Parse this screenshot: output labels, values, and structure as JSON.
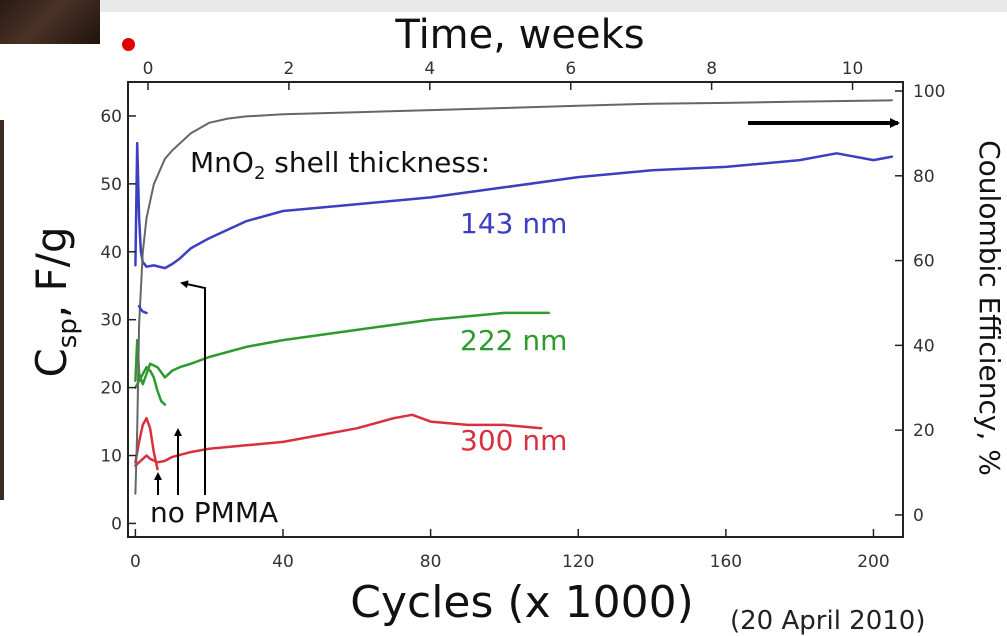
{
  "chart_data": {
    "type": "line",
    "top_axis": {
      "label": "Time, weeks",
      "range": [
        0,
        11
      ],
      "ticks": [
        "0",
        "2",
        "4",
        "6",
        "8",
        "10"
      ]
    },
    "bottom_axis": {
      "label": "Cycles (x 1000)",
      "range": [
        -2,
        208
      ],
      "ticks": [
        "0",
        "40",
        "80",
        "120",
        "160",
        "200"
      ]
    },
    "left_axis": {
      "label_main": "C",
      "label_sub": "sp",
      "label_rest": ", F/g",
      "range": [
        -2,
        65
      ],
      "ticks": [
        "0",
        "10",
        "20",
        "30",
        "40",
        "50",
        "60"
      ]
    },
    "right_axis": {
      "label": "Coulombic Efficiency, %",
      "range": [
        -3.08,
        100
      ],
      "ticks": [
        "0",
        "20",
        "40",
        "60",
        "80",
        "100"
      ]
    },
    "annotations": {
      "shell_title_main": "MnO",
      "shell_title_sub": "2",
      "shell_title_rest": " shell thickness:",
      "no_pmma": "no PMMA"
    },
    "series": [
      {
        "name": "143 nm",
        "axis": "left",
        "color": "#3b3fc0",
        "x": [
          0,
          0.5,
          1,
          1.5,
          2,
          3,
          5,
          8,
          10,
          12,
          15,
          20,
          30,
          40,
          60,
          80,
          100,
          120,
          140,
          160,
          180,
          190,
          200,
          205
        ],
        "y": [
          38,
          56,
          45,
          40,
          38.5,
          37.8,
          38,
          37.6,
          38.2,
          39,
          40.5,
          42,
          44.5,
          46,
          47,
          48,
          49.5,
          51,
          52,
          52.5,
          53.5,
          54.5,
          53.5,
          54
        ]
      },
      {
        "name": "222 nm",
        "axis": "left",
        "color": "#2e9a2e",
        "x": [
          0,
          0.5,
          1,
          2,
          3,
          4,
          6,
          8,
          10,
          12,
          15,
          20,
          30,
          40,
          60,
          80,
          100,
          112
        ],
        "y": [
          21,
          27,
          22,
          20.5,
          22,
          23.5,
          23,
          21.5,
          22.5,
          23,
          23.5,
          24.5,
          26,
          27,
          28.5,
          30,
          31,
          31
        ]
      },
      {
        "name": "222 nm (no PMMA)",
        "axis": "left",
        "color": "#2e9a2e",
        "x": [
          0,
          1,
          2,
          3,
          4,
          5,
          6,
          7,
          8
        ],
        "y": [
          20,
          21,
          22,
          23,
          22.5,
          21.5,
          19.5,
          18,
          17.5
        ]
      },
      {
        "name": "300 nm",
        "axis": "left",
        "color": "#d93040",
        "x": [
          0,
          1,
          2,
          3,
          4,
          6,
          8,
          10,
          15,
          20,
          30,
          40,
          50,
          60,
          70,
          75,
          80,
          90,
          100,
          110
        ],
        "y": [
          8.5,
          9,
          9.5,
          10,
          9.5,
          9,
          9.2,
          9.8,
          10.5,
          11,
          11.5,
          12,
          13,
          14,
          15.5,
          16,
          15,
          14.5,
          14.5,
          14
        ]
      },
      {
        "name": "300 nm (no PMMA)",
        "axis": "left",
        "color": "#d93040",
        "x": [
          0,
          1,
          2,
          3,
          4,
          5,
          6
        ],
        "y": [
          9,
          12,
          14.5,
          15.5,
          14,
          10.5,
          8
        ]
      },
      {
        "name": "Coulombic efficiency",
        "axis": "right",
        "color": "#666666",
        "x": [
          0,
          0.5,
          1,
          2,
          3,
          5,
          8,
          10,
          15,
          20,
          25,
          30,
          40,
          60,
          80,
          100,
          120,
          140,
          160,
          180,
          205
        ],
        "y": [
          5,
          20,
          45,
          62,
          70,
          78,
          84,
          86,
          90,
          92.5,
          93.5,
          94,
          94.5,
          95,
          95.5,
          96,
          96.5,
          97,
          97.2,
          97.5,
          97.8
        ]
      },
      {
        "name": "no PMMA capacitance",
        "axis": "left",
        "color": "#3b3fc0",
        "x": [
          1,
          1.5,
          2,
          3
        ],
        "y": [
          32,
          31.5,
          31.2,
          31
        ]
      }
    ]
  },
  "footer": {
    "date_note": "(20 April 2010)"
  }
}
